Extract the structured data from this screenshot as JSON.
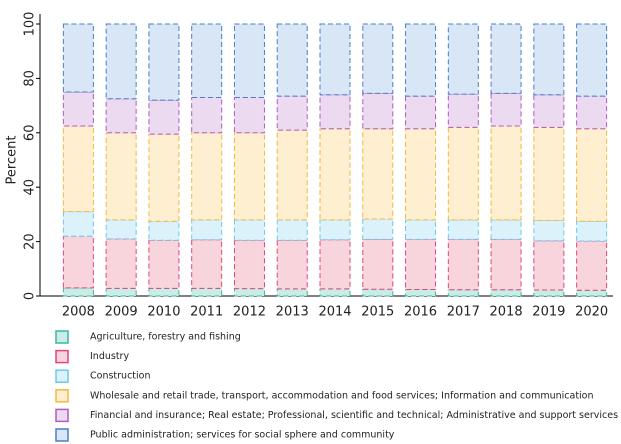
{
  "chart_data": {
    "type": "stacked_bar",
    "y_label": "Percent",
    "categories": [
      "2008",
      "2009",
      "2010",
      "2011",
      "2012",
      "2013",
      "2014",
      "2015",
      "2016",
      "2017",
      "2018",
      "2019",
      "2020"
    ],
    "series": [
      {
        "name": "Agriculture, forestry and fishing",
        "color": "#3cb6a0",
        "fill": "#c9ede6",
        "values": [
          3,
          2.8,
          2.8,
          2.8,
          2.7,
          2.6,
          2.6,
          2.5,
          2.4,
          2.3,
          2.3,
          2.2,
          2.1
        ]
      },
      {
        "name": "Industry",
        "color": "#e0457a",
        "fill": "#f8d5dc",
        "values": [
          19,
          18.2,
          17.7,
          17.9,
          17.8,
          17.9,
          18.1,
          18.3,
          18.4,
          18.5,
          18.5,
          18.1,
          18.1
        ]
      },
      {
        "name": "Construction",
        "color": "#6cc8ec",
        "fill": "#dcf2fb",
        "values": [
          9,
          7,
          7,
          7.3,
          7.5,
          7.5,
          7.3,
          7.5,
          7.2,
          7.2,
          7.2,
          7.5,
          7.3
        ]
      },
      {
        "name": "Wholesale and retail trade, transport, accommodation and food services; Information and communication",
        "color": "#f5b73d",
        "fill": "#fdefd0",
        "values": [
          31.5,
          32,
          32,
          32,
          32,
          33,
          33.5,
          33.2,
          33.5,
          34,
          34.5,
          34.2,
          34
        ]
      },
      {
        "name": "Financial and insurance; Real estate; Professional, scientific and technical; Administrative and support services",
        "color": "#b05cc0",
        "fill": "#ecdaf0",
        "values": [
          12.5,
          12.5,
          12.5,
          13,
          13,
          12.5,
          12.5,
          13,
          12,
          12.2,
          12,
          12,
          12
        ]
      },
      {
        "name": "Public administration; services for social sphere and community",
        "color": "#4a7fc8",
        "fill": "#d9e6f5",
        "values": [
          25,
          27.5,
          28,
          27,
          27,
          26.5,
          26,
          25.5,
          26.5,
          25.8,
          25.5,
          26,
          26.5
        ]
      }
    ],
    "ylim": [
      0,
      100
    ],
    "yticks": [
      0,
      20,
      40,
      60,
      80,
      100
    ],
    "legend": "bottom"
  }
}
